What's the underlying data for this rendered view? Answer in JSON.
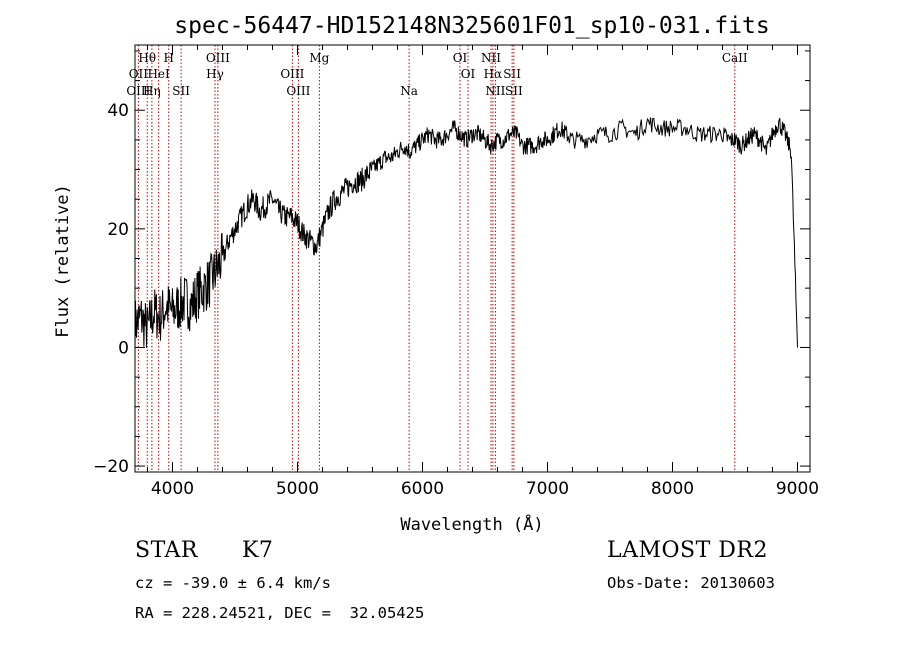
{
  "chart_data": {
    "type": "line",
    "title": "spec-56447-HD152148N325601F01_sp10-031.fits",
    "xlabel": "Wavelength (Å)",
    "ylabel": "Flux (relative)",
    "xlim": [
      3700,
      9100
    ],
    "ylim": [
      -21,
      51
    ],
    "xticks": [
      4000,
      5000,
      6000,
      7000,
      8000,
      9000
    ],
    "yticks": [
      -20,
      0,
      20,
      40
    ],
    "grid": false,
    "series": [
      {
        "x": [
          3700,
          3750,
          3800,
          3850,
          3900,
          3950,
          4000,
          4050,
          4100,
          4150,
          4200,
          4250,
          4300,
          4350,
          4400,
          4450,
          4500,
          4550,
          4600,
          4650,
          4700,
          4750,
          4800,
          4850,
          4900,
          4950,
          5000,
          5050,
          5100,
          5150,
          5200,
          5250,
          5300,
          5350,
          5400,
          5450,
          5500,
          5550,
          5600,
          5650,
          5700,
          5750,
          5800,
          5850,
          5900,
          5950,
          6000,
          6050,
          6100,
          6150,
          6200,
          6250,
          6300,
          6350,
          6400,
          6450,
          6500,
          6550,
          6600,
          6650,
          6700,
          6750,
          6800,
          6850,
          6900,
          6950,
          7000,
          7050,
          7100,
          7150,
          7200,
          7300,
          7400,
          7500,
          7600,
          7700,
          7800,
          7900,
          8000,
          8100,
          8200,
          8300,
          8400,
          8450,
          8500,
          8550,
          8600,
          8650,
          8700,
          8750,
          8800,
          8850,
          8900,
          8950,
          9000
        ],
        "y": [
          4,
          5,
          3,
          6,
          5,
          7,
          6,
          7,
          8,
          7,
          9,
          10,
          11,
          13,
          15,
          18,
          20,
          22,
          24,
          25,
          23,
          24,
          25,
          23,
          22,
          22,
          21,
          19,
          18,
          17,
          20,
          23,
          25,
          26,
          27,
          28,
          28,
          29,
          30,
          31,
          32,
          32,
          33,
          34,
          33,
          34,
          35,
          36,
          35,
          35,
          36,
          37,
          36,
          35,
          36,
          36,
          35,
          34,
          35,
          35,
          36,
          36,
          34,
          34,
          34,
          35,
          35,
          36,
          37,
          36,
          35,
          35,
          36,
          36,
          37,
          36,
          38,
          37,
          37,
          37,
          36,
          36,
          36,
          35,
          35,
          34,
          35,
          36,
          35,
          33,
          36,
          38,
          36,
          33,
          0
        ]
      }
    ],
    "spectral_lines": [
      {
        "label": "Hθ",
        "row": 0,
        "wavelength": 3798
      },
      {
        "label": "H",
        "row": 0,
        "wavelength": 3970
      },
      {
        "label": "OIII",
        "row": 0,
        "wavelength": 4363
      },
      {
        "label": "Mg",
        "row": 0,
        "wavelength": 5175
      },
      {
        "label": "OI",
        "row": 0,
        "wavelength": 6300
      },
      {
        "label": "NII",
        "row": 0,
        "wavelength": 6548
      },
      {
        "label": "CaII",
        "row": 0,
        "wavelength": 8498
      },
      {
        "label": "OII",
        "row": 1,
        "wavelength": 3727
      },
      {
        "label": "HeI",
        "row": 1,
        "wavelength": 3889
      },
      {
        "label": "Hγ",
        "row": 1,
        "wavelength": 4340
      },
      {
        "label": "OIII",
        "row": 1,
        "wavelength": 4959
      },
      {
        "label": "OI",
        "row": 1,
        "wavelength": 6364
      },
      {
        "label": "Hα",
        "row": 1,
        "wavelength": 6563
      },
      {
        "label": "SII",
        "row": 1,
        "wavelength": 6717
      },
      {
        "label": "OIII",
        "row": 2,
        "wavelength": 3727
      },
      {
        "label": "Hη",
        "row": 2,
        "wavelength": 3835
      },
      {
        "label": "SII",
        "row": 2,
        "wavelength": 4069
      },
      {
        "label": "OIII",
        "row": 2,
        "wavelength": 5007
      },
      {
        "label": "Na",
        "row": 2,
        "wavelength": 5893
      },
      {
        "label": "NII",
        "row": 2,
        "wavelength": 6583
      },
      {
        "label": "SII",
        "row": 2,
        "wavelength": 6731
      }
    ]
  },
  "info": {
    "object_class": "STAR",
    "subclass": "K7",
    "survey": "LAMOST DR2",
    "redshift": "cz = -39.0 ± 6.4 km/s",
    "obs_date": "Obs-Date: 20130603",
    "coords": "RA = 228.24521, DEC =  32.05425"
  },
  "colors": {
    "spectrum": "#000000",
    "line_marker": "#c00000"
  }
}
